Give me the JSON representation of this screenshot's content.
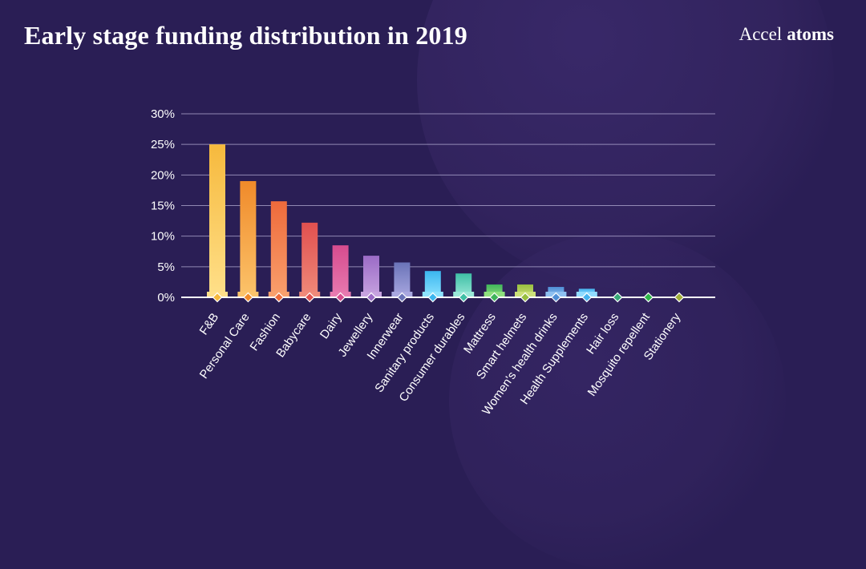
{
  "header": {
    "title": "Early stage funding distribution in 2019",
    "logo_part1": "Accel",
    "logo_part2": "atoms"
  },
  "chart_data": {
    "type": "bar",
    "title": "Early stage funding distribution in 2019",
    "xlabel": "",
    "ylabel": "",
    "ylim": [
      0,
      30
    ],
    "yticks": [
      "0%",
      "5%",
      "10%",
      "15%",
      "20%",
      "25%",
      "30%"
    ],
    "grid": true,
    "categories": [
      "F&B",
      "Personal Care",
      "Fashion",
      "Babycare",
      "Dairy",
      "Jewellery",
      "Innerwear",
      "Sanitary products",
      "Consumer durables",
      "Mattress",
      "Smart helmets",
      "Women's health drinks",
      "Health Supplements",
      "Hair loss",
      "Mosquito repellent",
      "Stationery"
    ],
    "values": [
      25,
      19,
      15.7,
      12.2,
      8.5,
      6.8,
      5.7,
      4.3,
      3.9,
      2.1,
      2.1,
      1.7,
      1.4,
      0,
      0,
      0
    ],
    "colors": [
      [
        "#ffe08a",
        "#f6b93d"
      ],
      [
        "#fcc46b",
        "#f08a2a"
      ],
      [
        "#f9a06d",
        "#ee6a3b"
      ],
      [
        "#f08a7a",
        "#e0504f"
      ],
      [
        "#e87ab0",
        "#d64c8e"
      ],
      [
        "#c7a3e0",
        "#9b6bc6"
      ],
      [
        "#a9a8e0",
        "#6a73b8"
      ],
      [
        "#8de3ff",
        "#3bb6ef"
      ],
      [
        "#9ae8d8",
        "#3fbfa5"
      ],
      [
        "#8fe07e",
        "#3fb45a"
      ],
      [
        "#cde07a",
        "#98bf3f"
      ],
      [
        "#8ec0f0",
        "#4f8fd6"
      ],
      [
        "#92dcff",
        "#48b4ef"
      ],
      [
        "#7fd3a9",
        "#3aa97a"
      ],
      [
        "#6ddc75",
        "#2eb84a"
      ],
      [
        "#c9d36a",
        "#a1af3a"
      ]
    ]
  }
}
